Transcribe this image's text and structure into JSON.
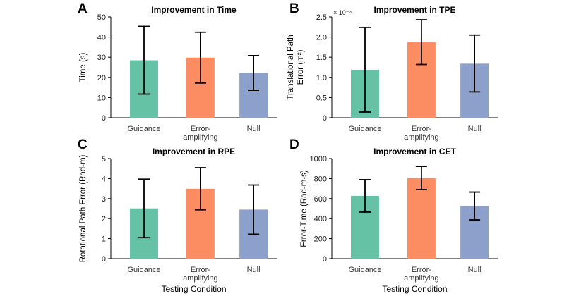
{
  "figure": {
    "panels": [
      "A",
      "B",
      "C",
      "D"
    ]
  },
  "chart_data": [
    {
      "type": "bar",
      "panel": "A",
      "title": "Improvement in Time",
      "ylabel": "Time (s)",
      "xlabel": "",
      "categories": [
        "Guidance",
        "Error-\namplifying",
        "Null"
      ],
      "values": [
        28.5,
        29.8,
        22.2
      ],
      "err_low": [
        11.7,
        17.2,
        13.6
      ],
      "err_high": [
        45.3,
        42.4,
        30.8
      ],
      "ylim": [
        0,
        50
      ],
      "yticks": [
        0,
        10,
        20,
        30,
        40,
        50
      ],
      "ytick_labels": [
        "0",
        "10",
        "20",
        "30",
        "40",
        "50"
      ],
      "scale_note": "",
      "colors": [
        "#66c2a5",
        "#fc8d62",
        "#8da0cb"
      ]
    },
    {
      "type": "bar",
      "panel": "B",
      "title": "Improvement in TPE",
      "ylabel": "Translational Path\nError (m²)",
      "xlabel": "",
      "categories": [
        "Guidance",
        "Error-\namplifying",
        "Null"
      ],
      "values": [
        1.19,
        1.87,
        1.34
      ],
      "err_low": [
        0.14,
        1.32,
        0.64
      ],
      "err_high": [
        2.24,
        2.43,
        2.05
      ],
      "ylim": [
        0,
        2.5
      ],
      "yticks": [
        0,
        0.5,
        1.0,
        1.5,
        2.0,
        2.5
      ],
      "ytick_labels": [
        "0",
        "0.5",
        "1.0",
        "1.5",
        "2.0",
        "2.5"
      ],
      "scale_note": "× 10⁻⁴",
      "colors": [
        "#66c2a5",
        "#fc8d62",
        "#8da0cb"
      ]
    },
    {
      "type": "bar",
      "panel": "C",
      "title": "Improvement in RPE",
      "ylabel": "Rotational Path Error (Rad-m)",
      "xlabel": "Testing Condition",
      "categories": [
        "Guidance",
        "Error-\namplifying",
        "Null"
      ],
      "values": [
        2.51,
        3.49,
        2.45
      ],
      "err_low": [
        1.05,
        2.44,
        1.22
      ],
      "err_high": [
        3.97,
        4.54,
        3.68
      ],
      "ylim": [
        0,
        5
      ],
      "yticks": [
        0,
        1,
        2,
        3,
        4,
        5
      ],
      "ytick_labels": [
        "0",
        "1",
        "2",
        "3",
        "4",
        "5"
      ],
      "scale_note": "",
      "colors": [
        "#66c2a5",
        "#fc8d62",
        "#8da0cb"
      ]
    },
    {
      "type": "bar",
      "panel": "D",
      "title": "Improvement in CET",
      "ylabel": "Error-Time (Rad-m-s)",
      "xlabel": "Testing Condition",
      "categories": [
        "Guidance",
        "Error-\namplifying",
        "Null"
      ],
      "values": [
        627,
        805,
        525
      ],
      "err_low": [
        465,
        690,
        387
      ],
      "err_high": [
        789,
        922,
        665
      ],
      "ylim": [
        0,
        1000
      ],
      "yticks": [
        0,
        200,
        400,
        600,
        800,
        1000
      ],
      "ytick_labels": [
        "0",
        "200",
        "400",
        "600",
        "800",
        "1000"
      ],
      "scale_note": "",
      "colors": [
        "#66c2a5",
        "#fc8d62",
        "#8da0cb"
      ]
    }
  ]
}
